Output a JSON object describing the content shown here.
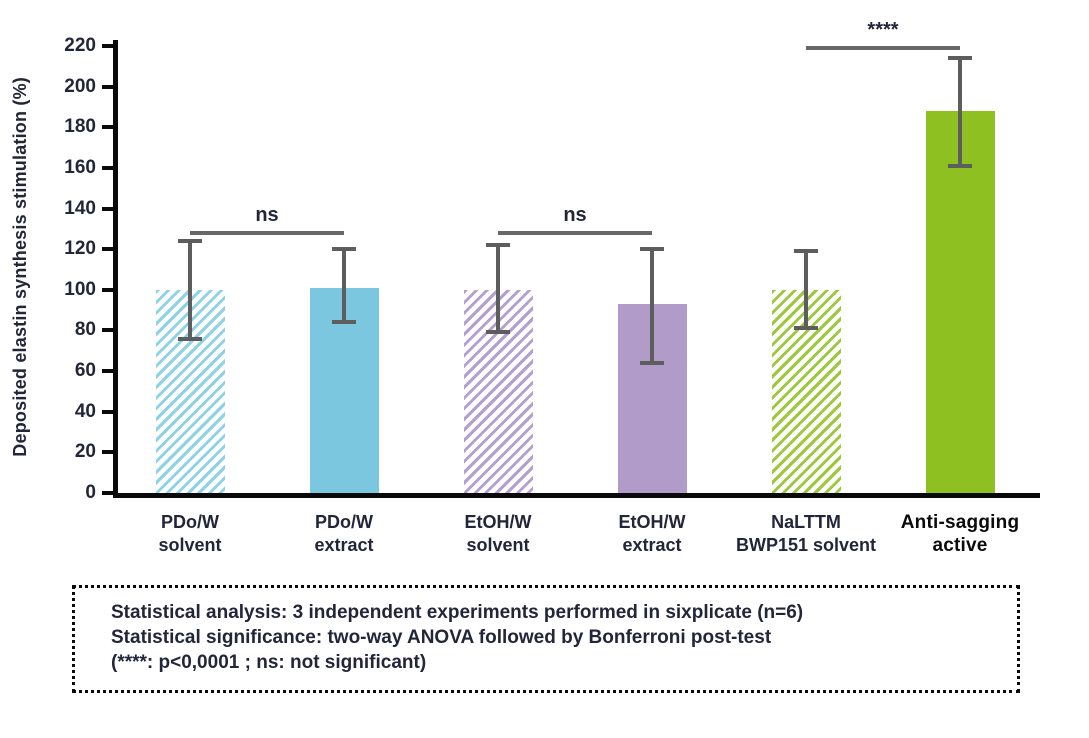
{
  "chart_data": {
    "type": "bar",
    "title": "",
    "ylabel": "Deposited elastin synthesis stimulation (%)",
    "ylim": [
      0,
      228
    ],
    "yticks": [
      0,
      20,
      40,
      60,
      80,
      100,
      120,
      140,
      160,
      180,
      200,
      220
    ],
    "grid": false,
    "legend": "none",
    "categories": [
      {
        "label": [
          "PDo/W",
          "solvent"
        ],
        "emphasis": false
      },
      {
        "label": [
          "PDo/W",
          "extract"
        ],
        "emphasis": false
      },
      {
        "label": [
          "EtOH/W",
          "solvent"
        ],
        "emphasis": false
      },
      {
        "label": [
          "EtOH/W",
          "extract"
        ],
        "emphasis": false
      },
      {
        "label": [
          "NaLTTM",
          "BWP151 solvent"
        ],
        "emphasis": false
      },
      {
        "label": [
          "Anti-sagging",
          "active"
        ],
        "emphasis": true
      }
    ],
    "values": [
      100,
      101,
      100,
      93,
      100,
      188
    ],
    "error_low": [
      76,
      84,
      79,
      64,
      81,
      161
    ],
    "error_high": [
      124,
      120,
      122,
      120,
      119,
      214
    ],
    "bar_styles": [
      {
        "fill": "hatched",
        "color": "#8dd2e6"
      },
      {
        "fill": "solid",
        "color": "#7bc7df"
      },
      {
        "fill": "hatched",
        "color": "#b4a0ce"
      },
      {
        "fill": "solid",
        "color": "#b19bc9"
      },
      {
        "fill": "hatched",
        "color": "#9cc93c"
      },
      {
        "fill": "solid",
        "color": "#8ec021"
      }
    ],
    "significance": [
      {
        "label": "ns",
        "from": 0,
        "to": 1,
        "y": 129
      },
      {
        "label": "ns",
        "from": 2,
        "to": 3,
        "y": 129
      },
      {
        "label": "****",
        "from": 4,
        "to": 5,
        "y": 220
      }
    ]
  },
  "colors": {
    "axis": "#0a0a0a",
    "error_bar": "#5d5d5d",
    "significance_line": "#686868",
    "text": "#23263a"
  },
  "stats_box": {
    "lines": [
      "Statistical analysis: 3 independent experiments performed in sixplicate (n=6)",
      "Statistical significance: two-way ANOVA followed by Bonferroni post-test",
      "(****: p<0,0001 ; ns: not significant)"
    ]
  }
}
